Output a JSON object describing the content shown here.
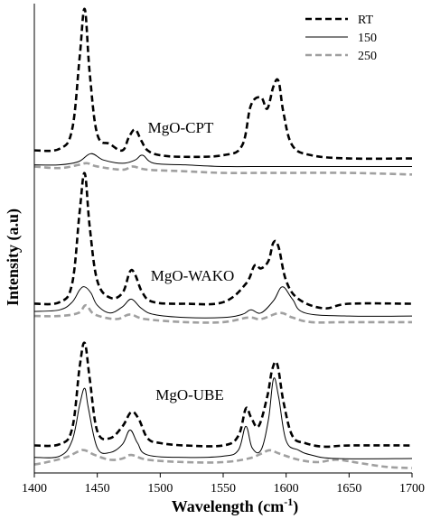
{
  "chart_data": {
    "type": "line",
    "title": "",
    "xlabel": "Wavelength (cm",
    "xlabel_sup": "-1",
    "xlabel_close": ")",
    "ylabel": "Intensity (a.u)",
    "xlim": [
      1400,
      1700
    ],
    "x_ticks": [
      "1400",
      "1450",
      "1500",
      "1550",
      "1600",
      "1650",
      "1700"
    ],
    "y_ticks_shown": false,
    "grid": false,
    "legend_position": "top-right",
    "series_styles": [
      {
        "name": "RT",
        "color": "#000000",
        "dash": "dashed",
        "weight": "heavy"
      },
      {
        "name": "150",
        "color": "#000000",
        "dash": "solid",
        "weight": "thin"
      },
      {
        "name": "250",
        "color": "#a0a0a0",
        "dash": "dashed",
        "weight": "heavy"
      }
    ],
    "panels": [
      {
        "label": "MgO-CPT",
        "series": [
          {
            "name": "RT",
            "x": [
              1400,
              1420,
              1430,
              1436,
              1440,
              1444,
              1450,
              1460,
              1470,
              1475,
              1480,
              1485,
              1490,
              1500,
              1520,
              1550,
              1565,
              1572,
              1580,
              1585,
              1590,
              1594,
              1598,
              1605,
              1620,
              1650,
              1700
            ],
            "y": [
              0.12,
              0.13,
              0.25,
              0.7,
              1.0,
              0.6,
              0.22,
              0.16,
              0.12,
              0.2,
              0.25,
              0.18,
              0.12,
              0.09,
              0.08,
              0.09,
              0.15,
              0.4,
              0.45,
              0.38,
              0.52,
              0.55,
              0.35,
              0.15,
              0.09,
              0.07,
              0.07
            ]
          },
          {
            "name": "150",
            "x": [
              1400,
              1420,
              1435,
              1445,
              1455,
              1470,
              1480,
              1486,
              1495,
              1520,
              1550,
              1580,
              1600,
              1650,
              1700
            ],
            "y": [
              0.03,
              0.03,
              0.05,
              0.1,
              0.06,
              0.04,
              0.06,
              0.09,
              0.04,
              0.03,
              0.02,
              0.02,
              0.02,
              0.02,
              0.02
            ]
          },
          {
            "name": "250",
            "x": [
              1400,
              1420,
              1435,
              1442,
              1450,
              1470,
              1478,
              1490,
              1520,
              1550,
              1580,
              1600,
              1650,
              1700
            ],
            "y": [
              0.02,
              0.01,
              0.03,
              0.04,
              0.02,
              0.0,
              0.02,
              0.0,
              -0.01,
              -0.02,
              -0.02,
              -0.02,
              -0.02,
              -0.03
            ]
          }
        ]
      },
      {
        "label": "MgO-WAKO",
        "series": [
          {
            "name": "RT",
            "x": [
              1400,
              1420,
              1430,
              1436,
              1440,
              1444,
              1450,
              1460,
              1470,
              1476,
              1480,
              1486,
              1495,
              1520,
              1550,
              1568,
              1575,
              1580,
              1586,
              1590,
              1594,
              1600,
              1610,
              1630,
              1650,
              1700
            ],
            "y": [
              0.15,
              0.16,
              0.28,
              0.75,
              1.0,
              0.65,
              0.3,
              0.19,
              0.22,
              0.36,
              0.34,
              0.22,
              0.16,
              0.15,
              0.16,
              0.28,
              0.4,
              0.38,
              0.43,
              0.55,
              0.52,
              0.3,
              0.18,
              0.12,
              0.15,
              0.15
            ]
          },
          {
            "name": "150",
            "x": [
              1400,
              1420,
              1430,
              1436,
              1440,
              1445,
              1450,
              1460,
              1470,
              1477,
              1485,
              1495,
              1520,
              1550,
              1565,
              1572,
              1580,
              1590,
              1597,
              1605,
              1615,
              1650,
              1700
            ],
            "y": [
              0.1,
              0.11,
              0.16,
              0.24,
              0.26,
              0.22,
              0.14,
              0.09,
              0.13,
              0.18,
              0.12,
              0.08,
              0.06,
              0.06,
              0.08,
              0.11,
              0.09,
              0.17,
              0.26,
              0.18,
              0.09,
              0.07,
              0.07
            ]
          },
          {
            "name": "250",
            "x": [
              1400,
              1420,
              1435,
              1441,
              1448,
              1465,
              1476,
              1488,
              1520,
              1550,
              1570,
              1580,
              1595,
              1605,
              1620,
              1650,
              1700
            ],
            "y": [
              0.07,
              0.07,
              0.09,
              0.14,
              0.08,
              0.05,
              0.08,
              0.05,
              0.03,
              0.03,
              0.06,
              0.05,
              0.09,
              0.06,
              0.03,
              0.03,
              0.03
            ]
          }
        ]
      },
      {
        "label": "MgO-UBE",
        "series": [
          {
            "name": "RT",
            "x": [
              1400,
              1420,
              1430,
              1436,
              1440,
              1444,
              1450,
              1460,
              1470,
              1477,
              1483,
              1490,
              1500,
              1520,
              1550,
              1562,
              1568,
              1572,
              1578,
              1585,
              1589,
              1593,
              1598,
              1605,
              1615,
              1630,
              1650,
              1700
            ],
            "y": [
              0.14,
              0.15,
              0.28,
              0.8,
              1.0,
              0.7,
              0.26,
              0.2,
              0.3,
              0.42,
              0.36,
              0.2,
              0.16,
              0.14,
              0.14,
              0.22,
              0.45,
              0.38,
              0.3,
              0.55,
              0.78,
              0.82,
              0.5,
              0.22,
              0.16,
              0.13,
              0.14,
              0.14
            ]
          },
          {
            "name": "150",
            "x": [
              1400,
              1420,
              1430,
              1436,
              1440,
              1443,
              1450,
              1460,
              1470,
              1476,
              1482,
              1490,
              1520,
              1550,
              1562,
              1568,
              1573,
              1580,
              1586,
              1590,
              1594,
              1600,
              1610,
              1620,
              1640,
              1700
            ],
            "y": [
              0.04,
              0.05,
              0.18,
              0.48,
              0.62,
              0.45,
              0.12,
              0.08,
              0.15,
              0.27,
              0.16,
              0.06,
              0.04,
              0.05,
              0.1,
              0.3,
              0.12,
              0.1,
              0.36,
              0.7,
              0.55,
              0.18,
              0.1,
              0.06,
              0.03,
              0.03
            ]
          },
          {
            "name": "250",
            "x": [
              1400,
              1410,
              1425,
              1435,
              1440,
              1448,
              1460,
              1470,
              1477,
              1490,
              1520,
              1550,
              1570,
              1580,
              1587,
              1595,
              1610,
              1625,
              1640,
              1660,
              1680,
              1700
            ],
            "y": [
              -0.02,
              0.0,
              0.04,
              0.09,
              0.1,
              0.06,
              0.02,
              0.03,
              0.06,
              0.02,
              0.0,
              0.0,
              0.03,
              0.07,
              0.1,
              0.07,
              0.02,
              0.0,
              0.02,
              -0.01,
              -0.04,
              -0.05
            ]
          }
        ]
      }
    ]
  }
}
